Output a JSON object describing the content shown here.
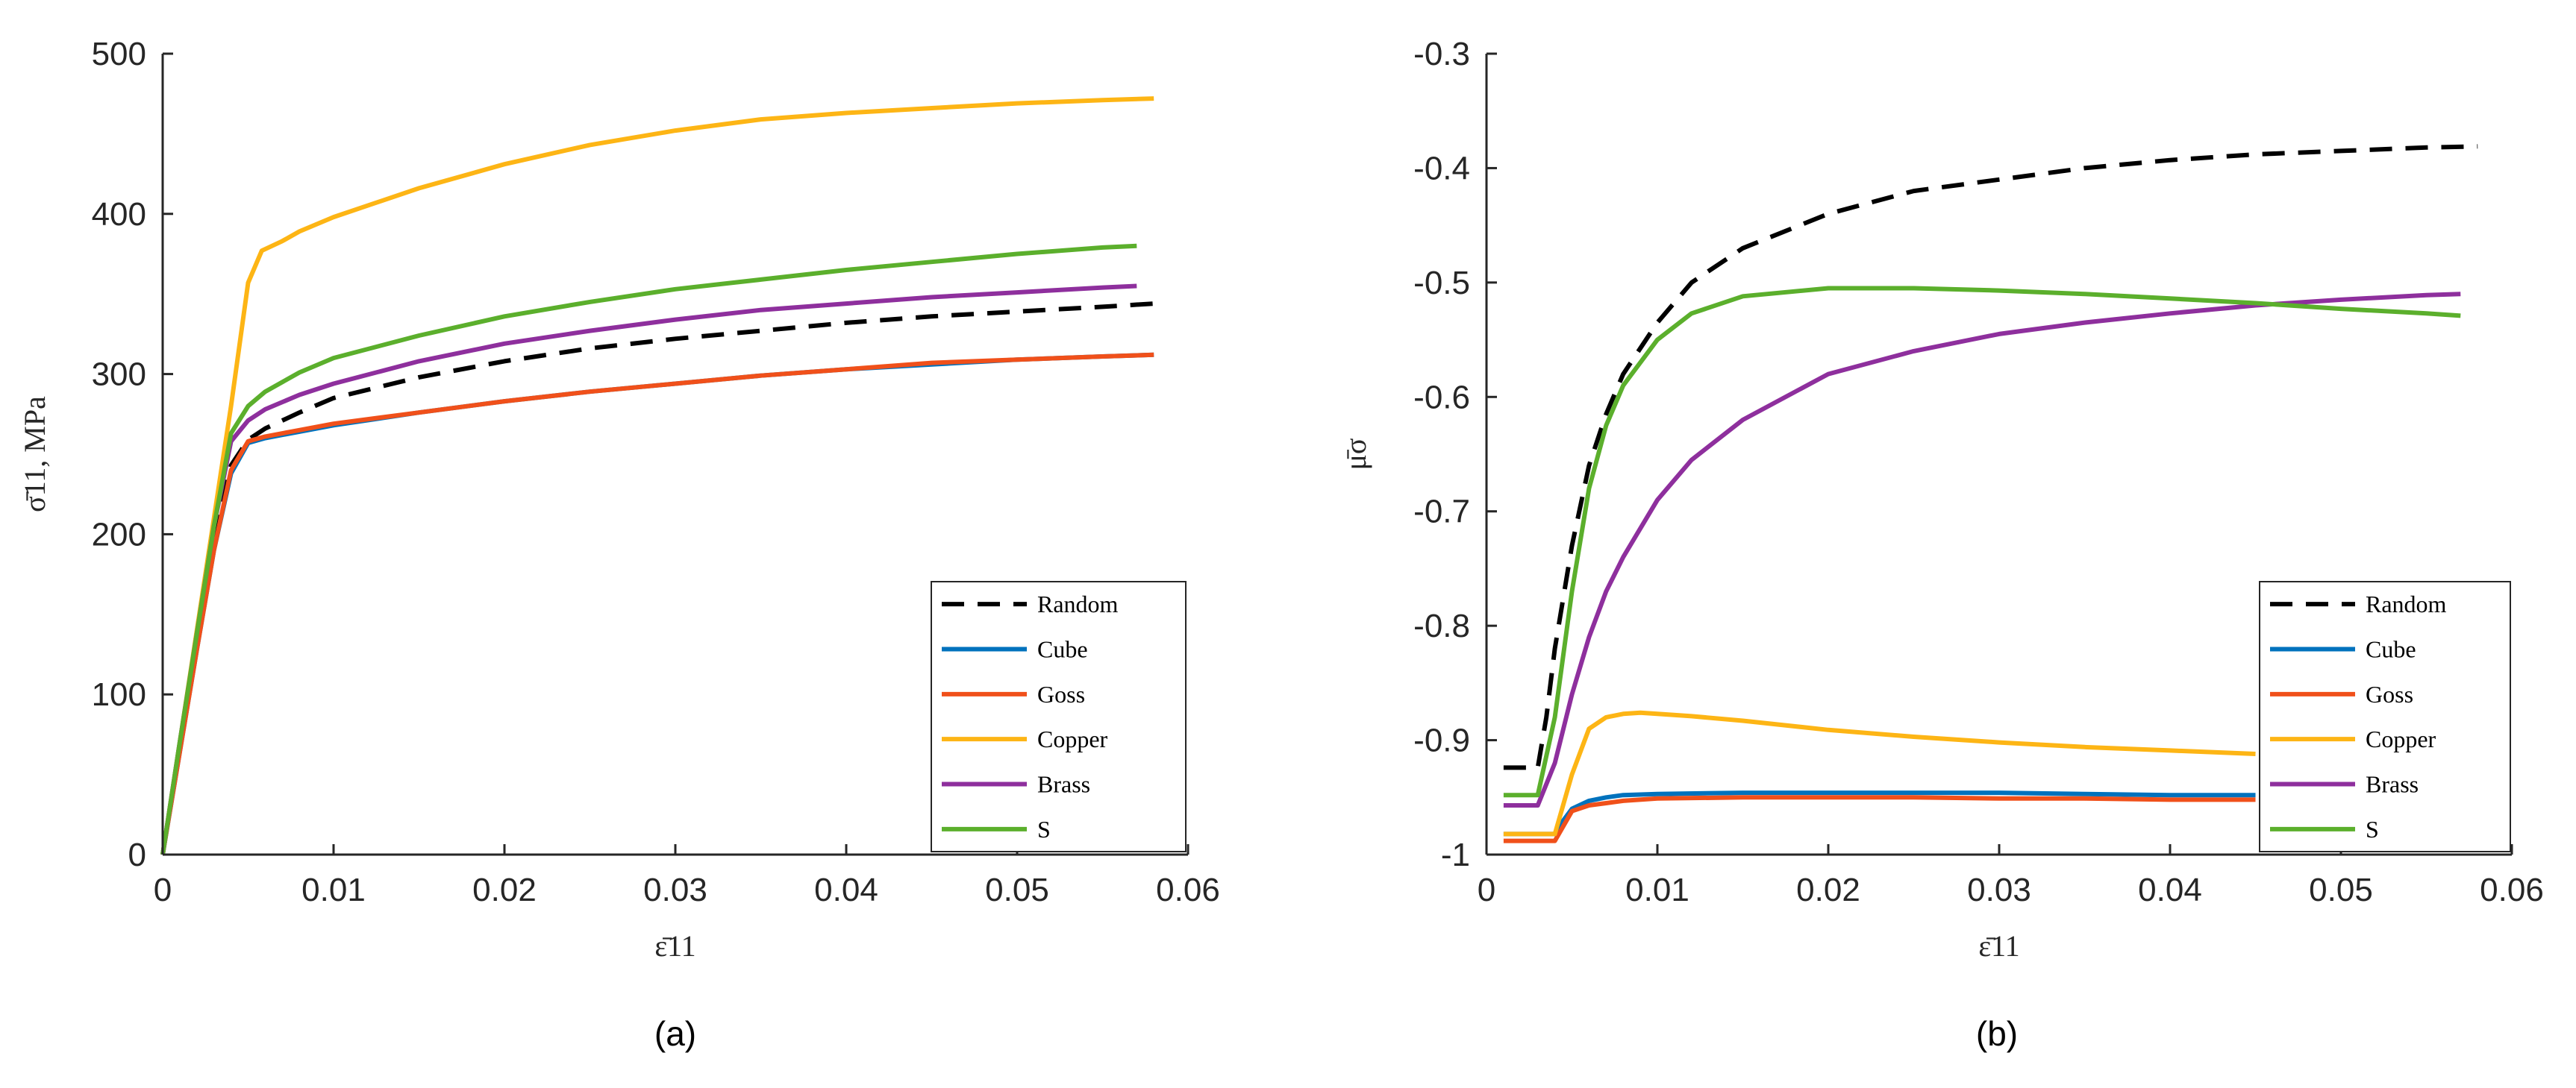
{
  "colors": {
    "Random": "#000000",
    "Cube": "#0072BD",
    "Goss": "#F0501A",
    "Copper": "#FDB515",
    "Brass": "#8E2F9D",
    "S": "#5BAF2C",
    "axis": "#262626"
  },
  "chart_data": [
    {
      "type": "line",
      "panel_label": "(a)",
      "xlabel": "ε̄11",
      "ylabel": "σ̄11, MPa",
      "xlim": [
        0,
        0.06
      ],
      "ylim": [
        0,
        500
      ],
      "xticks": [
        "0",
        "0.01",
        "0.02",
        "0.03",
        "0.04",
        "0.05",
        "0.06"
      ],
      "yticks": [
        "0",
        "100",
        "200",
        "300",
        "400",
        "500"
      ],
      "xtick_values": [
        0,
        0.01,
        0.02,
        0.03,
        0.04,
        0.05,
        0.06
      ],
      "ytick_values": [
        0,
        100,
        200,
        300,
        400,
        500
      ],
      "legend": [
        "Random",
        "Cube",
        "Goss",
        "Copper",
        "Brass",
        "S"
      ],
      "legend_position": "bottom-right",
      "series": [
        {
          "name": "Random",
          "style": "dashed",
          "x": [
            0,
            0.001,
            0.002,
            0.003,
            0.004,
            0.005,
            0.006,
            0.008,
            0.01,
            0.015,
            0.02,
            0.025,
            0.03,
            0.035,
            0.04,
            0.045,
            0.05,
            0.055,
            0.058
          ],
          "y": [
            0,
            68,
            135,
            200,
            243,
            259,
            266,
            276,
            285,
            298,
            308,
            316,
            322,
            327,
            332,
            336,
            339,
            342,
            344
          ]
        },
        {
          "name": "Cube",
          "style": "solid",
          "x": [
            0,
            0.001,
            0.002,
            0.003,
            0.004,
            0.005,
            0.006,
            0.008,
            0.01,
            0.015,
            0.02,
            0.025,
            0.03,
            0.035,
            0.04,
            0.045,
            0.05,
            0.055,
            0.058
          ],
          "y": [
            0,
            64,
            128,
            190,
            238,
            257,
            260,
            264,
            268,
            276,
            283,
            289,
            294,
            299,
            303,
            306,
            309,
            311,
            312
          ]
        },
        {
          "name": "Goss",
          "style": "solid",
          "x": [
            0,
            0.001,
            0.002,
            0.003,
            0.004,
            0.005,
            0.006,
            0.008,
            0.01,
            0.015,
            0.02,
            0.025,
            0.03,
            0.035,
            0.04,
            0.045,
            0.05,
            0.055,
            0.058
          ],
          "y": [
            0,
            64,
            128,
            190,
            240,
            258,
            261,
            265,
            269,
            276,
            283,
            289,
            294,
            299,
            303,
            307,
            309,
            311,
            312
          ]
        },
        {
          "name": "Copper",
          "style": "solid",
          "x": [
            0,
            0.001,
            0.002,
            0.003,
            0.004,
            0.005,
            0.0058,
            0.007,
            0.008,
            0.01,
            0.015,
            0.02,
            0.025,
            0.03,
            0.035,
            0.04,
            0.045,
            0.05,
            0.055,
            0.058
          ],
          "y": [
            0,
            70,
            140,
            210,
            280,
            357,
            377,
            383,
            389,
            398,
            416,
            431,
            443,
            452,
            459,
            463,
            466,
            469,
            471,
            472
          ]
        },
        {
          "name": "Brass",
          "style": "solid",
          "x": [
            0,
            0.001,
            0.002,
            0.003,
            0.004,
            0.005,
            0.006,
            0.008,
            0.01,
            0.015,
            0.02,
            0.025,
            0.03,
            0.035,
            0.04,
            0.045,
            0.05,
            0.055,
            0.057
          ],
          "y": [
            0,
            70,
            138,
            205,
            258,
            271,
            278,
            287,
            294,
            308,
            319,
            327,
            334,
            340,
            344,
            348,
            351,
            354,
            355
          ]
        },
        {
          "name": "S",
          "style": "solid",
          "x": [
            0,
            0.001,
            0.002,
            0.003,
            0.004,
            0.005,
            0.006,
            0.008,
            0.01,
            0.015,
            0.02,
            0.025,
            0.03,
            0.035,
            0.04,
            0.045,
            0.05,
            0.055,
            0.057
          ],
          "y": [
            0,
            70,
            138,
            205,
            263,
            280,
            289,
            301,
            310,
            324,
            336,
            345,
            353,
            359,
            365,
            370,
            375,
            379,
            380
          ]
        }
      ]
    },
    {
      "type": "line",
      "panel_label": "(b)",
      "xlabel": "ε̄11",
      "ylabel": "μ̄σ",
      "xlim": [
        0,
        0.06
      ],
      "ylim": [
        -1,
        -0.3
      ],
      "xticks": [
        "0",
        "0.01",
        "0.02",
        "0.03",
        "0.04",
        "0.05",
        "0.06"
      ],
      "yticks": [
        "-1",
        "-0.9",
        "-0.8",
        "-0.7",
        "-0.6",
        "-0.5",
        "-0.4",
        "-0.3"
      ],
      "xtick_values": [
        0,
        0.01,
        0.02,
        0.03,
        0.04,
        0.05,
        0.06
      ],
      "ytick_values": [
        -1,
        -0.9,
        -0.8,
        -0.7,
        -0.6,
        -0.5,
        -0.4,
        -0.3
      ],
      "legend": [
        "Random",
        "Cube",
        "Goss",
        "Copper",
        "Brass",
        "S"
      ],
      "legend_position": "bottom-right",
      "series": [
        {
          "name": "Random",
          "style": "dashed",
          "x": [
            0.001,
            0.003,
            0.0035,
            0.004,
            0.005,
            0.006,
            0.007,
            0.008,
            0.01,
            0.012,
            0.015,
            0.02,
            0.025,
            0.03,
            0.035,
            0.04,
            0.045,
            0.05,
            0.055,
            0.058
          ],
          "y": [
            -0.924,
            -0.924,
            -0.88,
            -0.82,
            -0.73,
            -0.66,
            -0.615,
            -0.58,
            -0.535,
            -0.5,
            -0.47,
            -0.44,
            -0.42,
            -0.41,
            -0.4,
            -0.393,
            -0.388,
            -0.385,
            -0.382,
            -0.381
          ]
        },
        {
          "name": "Cube",
          "style": "solid",
          "x": [
            0.001,
            0.004,
            0.0045,
            0.005,
            0.006,
            0.007,
            0.008,
            0.01,
            0.015,
            0.02,
            0.025,
            0.03,
            0.035,
            0.04,
            0.045
          ],
          "y": [
            -0.982,
            -0.982,
            -0.97,
            -0.96,
            -0.953,
            -0.95,
            -0.948,
            -0.947,
            -0.946,
            -0.946,
            -0.946,
            -0.946,
            -0.947,
            -0.948,
            -0.948
          ]
        },
        {
          "name": "Goss",
          "style": "solid",
          "x": [
            0.001,
            0.004,
            0.0045,
            0.005,
            0.006,
            0.007,
            0.008,
            0.01,
            0.015,
            0.02,
            0.025,
            0.03,
            0.035,
            0.04,
            0.045
          ],
          "y": [
            -0.988,
            -0.988,
            -0.975,
            -0.962,
            -0.957,
            -0.955,
            -0.953,
            -0.951,
            -0.95,
            -0.95,
            -0.95,
            -0.951,
            -0.951,
            -0.952,
            -0.952
          ]
        },
        {
          "name": "Copper",
          "style": "solid",
          "x": [
            0.001,
            0.004,
            0.005,
            0.006,
            0.007,
            0.008,
            0.009,
            0.01,
            0.012,
            0.015,
            0.02,
            0.025,
            0.03,
            0.035,
            0.04,
            0.045
          ],
          "y": [
            -0.982,
            -0.982,
            -0.93,
            -0.89,
            -0.88,
            -0.877,
            -0.876,
            -0.877,
            -0.879,
            -0.883,
            -0.891,
            -0.897,
            -0.902,
            -0.906,
            -0.909,
            -0.912
          ]
        },
        {
          "name": "Brass",
          "style": "solid",
          "x": [
            0.001,
            0.003,
            0.004,
            0.005,
            0.006,
            0.007,
            0.008,
            0.01,
            0.012,
            0.015,
            0.02,
            0.025,
            0.03,
            0.035,
            0.04,
            0.045,
            0.05,
            0.055,
            0.057
          ],
          "y": [
            -0.957,
            -0.957,
            -0.92,
            -0.86,
            -0.81,
            -0.77,
            -0.74,
            -0.69,
            -0.655,
            -0.62,
            -0.58,
            -0.56,
            -0.545,
            -0.535,
            -0.527,
            -0.52,
            -0.515,
            -0.511,
            -0.51
          ]
        },
        {
          "name": "S",
          "style": "solid",
          "x": [
            0.001,
            0.003,
            0.004,
            0.005,
            0.006,
            0.007,
            0.008,
            0.01,
            0.012,
            0.015,
            0.02,
            0.025,
            0.03,
            0.035,
            0.04,
            0.045,
            0.05,
            0.055,
            0.057
          ],
          "y": [
            -0.948,
            -0.948,
            -0.88,
            -0.77,
            -0.68,
            -0.625,
            -0.59,
            -0.55,
            -0.527,
            -0.512,
            -0.505,
            -0.505,
            -0.507,
            -0.51,
            -0.514,
            -0.518,
            -0.523,
            -0.527,
            -0.529
          ]
        }
      ]
    }
  ]
}
